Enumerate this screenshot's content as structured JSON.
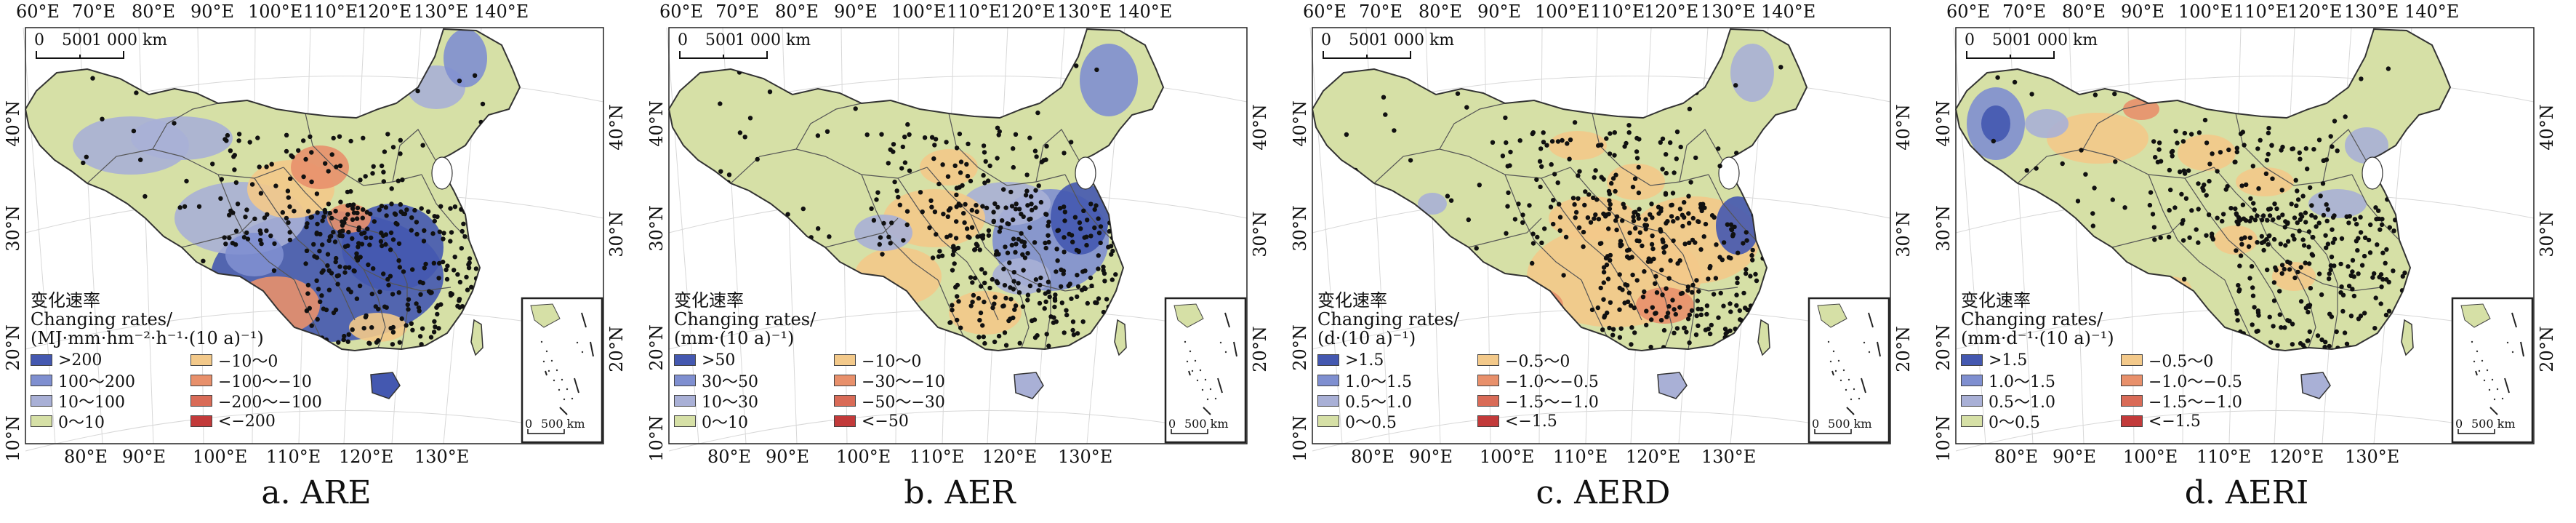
{
  "lon_labels_top": [
    "60°E",
    "70°E",
    "80°E",
    "90°E",
    "100°E",
    "110°E",
    "120°E",
    "130°E",
    "140°E"
  ],
  "lon_labels_bottom": [
    "80°E",
    "90°E",
    "100°E",
    "110°E",
    "120°E",
    "130°E"
  ],
  "lat_labels_left": [
    "40°N",
    "30°N",
    "20°N",
    "10°N"
  ],
  "lat_labels_right": [
    "40°N",
    "30°N",
    "20°N"
  ],
  "scale_bar": {
    "ticks": [
      "0",
      "500",
      "1 000 km"
    ]
  },
  "inset_scale": {
    "ticks": [
      "0",
      "500 km"
    ]
  },
  "colors": {
    "high3": "#4458b0",
    "high2": "#7f8fd0",
    "high1": "#a9b0d6",
    "base": "#d6e0a6",
    "low1": "#f3c98a",
    "low2": "#e8906b",
    "low3": "#c23a3a",
    "border": "#555555",
    "station": "#111111"
  },
  "panels": [
    {
      "caption": "a. ARE",
      "legend_title_cn": "变化速率",
      "legend_title_en1": "Changing rates/",
      "legend_title_en2": "(MJ·mm·hm⁻²·h⁻¹·(10 a)⁻¹)",
      "legend_items": [
        ">200",
        "−10～0",
        "100～200",
        "−100～−10",
        "10～100",
        "−200～−100",
        "0～10",
        "<−200"
      ]
    },
    {
      "caption": "b. AER",
      "legend_title_cn": "变化速率",
      "legend_title_en1": "Changing rates/",
      "legend_title_en2": "(mm·(10 a)⁻¹)",
      "legend_items": [
        ">50",
        "−10～0",
        "30～50",
        "−30～−10",
        "10～30",
        "−50～−30",
        "0～10",
        "<−50"
      ]
    },
    {
      "caption": "c. AERD",
      "legend_title_cn": "变化速率",
      "legend_title_en1": "Changing rates/",
      "legend_title_en2": "(d·(10 a)⁻¹)",
      "legend_items": [
        ">1.5",
        "−0.5～0",
        "1.0～1.5",
        "−1.0～−0.5",
        "0.5～1.0",
        "−1.5～−1.0",
        "0～0.5",
        "<−1.5"
      ]
    },
    {
      "caption": "d. AERI",
      "legend_title_cn": "变化速率",
      "legend_title_en1": "Changing rates/",
      "legend_title_en2": "(mm·d⁻¹·(10 a)⁻¹)",
      "legend_items": [
        ">1.5",
        "−0.5～0",
        "1.0～1.5",
        "−1.0～−0.5",
        "0.5～1.0",
        "−1.5～−1.0",
        "0～0.5",
        "<−1.5"
      ]
    }
  ]
}
